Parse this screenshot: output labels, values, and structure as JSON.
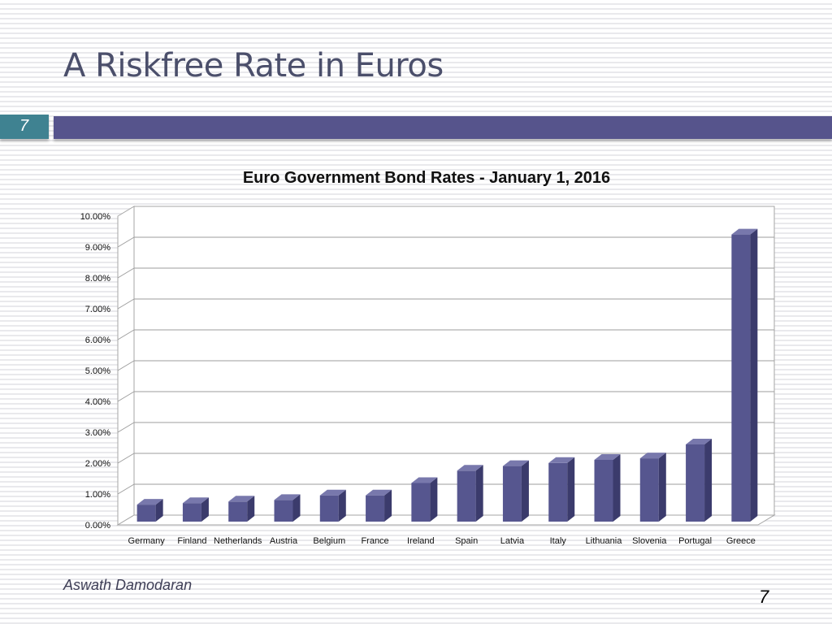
{
  "slide": {
    "title": "A Riskfree Rate in Euros",
    "number_badge": "7",
    "author": "Aswath Damodaran",
    "page_number": "7"
  },
  "colors": {
    "bar_front": "#56568f",
    "bar_side": "#3b3b6c",
    "bar_top": "#7878ac",
    "badge": "#3f8291",
    "title_bar": "#56548c"
  },
  "chart_data": {
    "type": "bar",
    "title": "Euro Government Bond Rates - January 1, 2016",
    "xlabel": "",
    "ylabel": "",
    "categories": [
      "Germany",
      "Finland",
      "Netherlands",
      "Austria",
      "Belgium",
      "France",
      "Ireland",
      "Spain",
      "Latvia",
      "Italy",
      "Lithuania",
      "Slovenia",
      "Portugal",
      "Greece"
    ],
    "values": [
      0.55,
      0.6,
      0.65,
      0.7,
      0.85,
      0.85,
      1.25,
      1.65,
      1.8,
      1.9,
      2.0,
      2.05,
      2.5,
      9.3
    ],
    "yticks": [
      "0.00%",
      "1.00%",
      "2.00%",
      "3.00%",
      "4.00%",
      "5.00%",
      "6.00%",
      "7.00%",
      "8.00%",
      "9.00%",
      "10.00%"
    ],
    "ylim": [
      0,
      10
    ],
    "grid": true,
    "style": "3d-bar",
    "legend": "none"
  }
}
